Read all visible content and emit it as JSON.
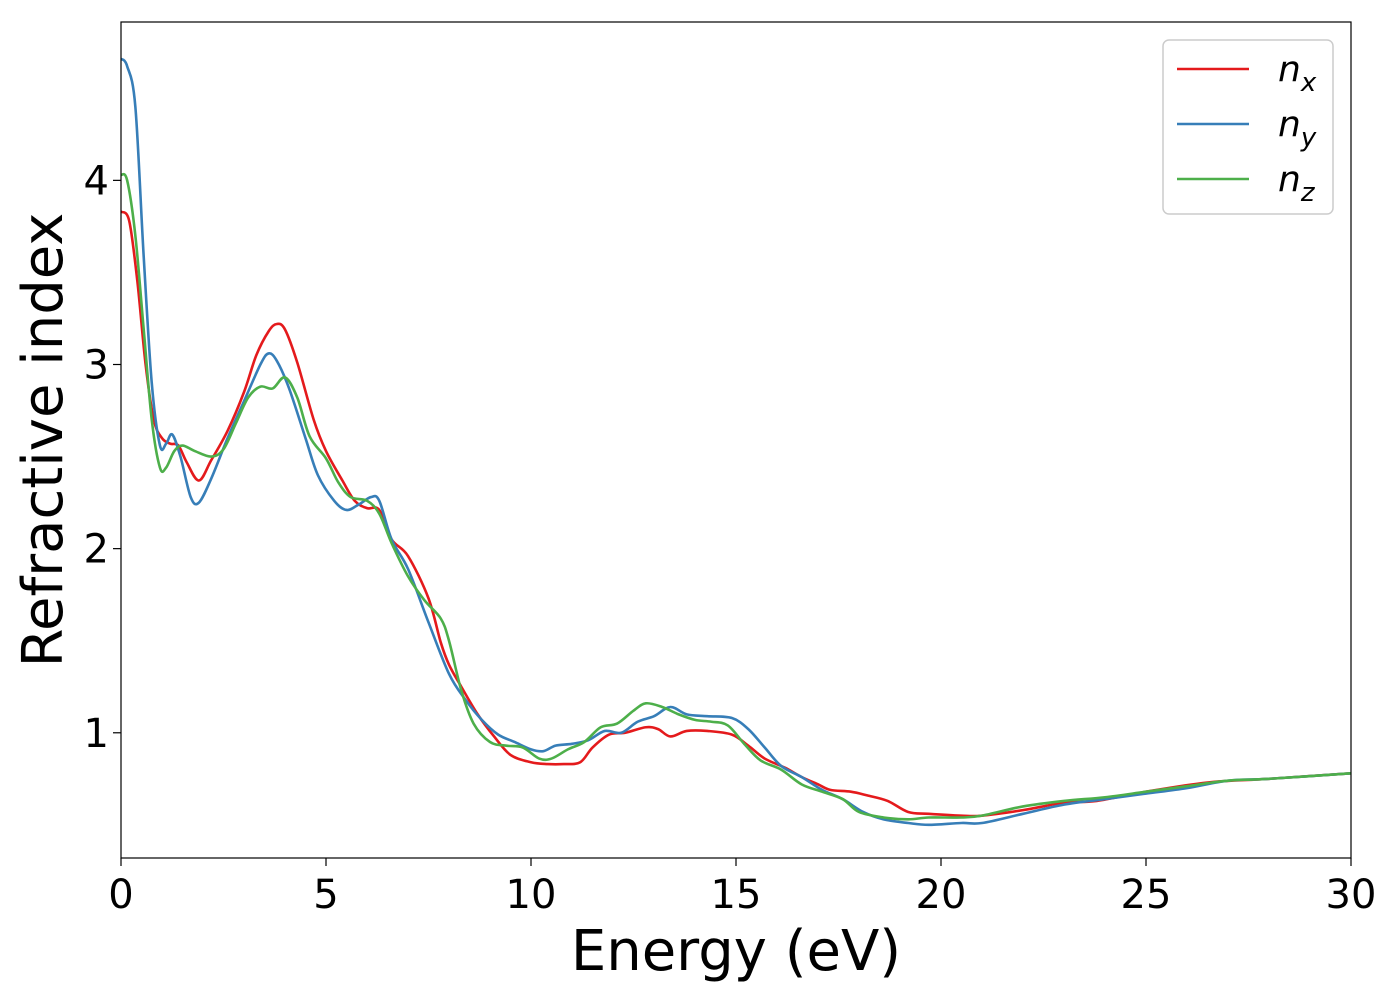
{
  "chart_data": {
    "type": "line",
    "xlabel": "Energy (eV)",
    "ylabel": "Refractive index",
    "xlim": [
      0,
      30
    ],
    "ylim": [
      0.32,
      4.86
    ],
    "xticks": [
      0,
      5,
      10,
      15,
      20,
      25,
      30
    ],
    "yticks": [
      1,
      2,
      3,
      4
    ],
    "grid": false,
    "legend_position": "top-right",
    "series": [
      {
        "name": "n",
        "subscript": "x",
        "color": "#e41a1c",
        "points": [
          [
            0,
            3.83
          ],
          [
            0.2,
            3.78
          ],
          [
            0.4,
            3.45
          ],
          [
            0.6,
            3.0
          ],
          [
            0.8,
            2.7
          ],
          [
            1.0,
            2.6
          ],
          [
            1.2,
            2.57
          ],
          [
            1.4,
            2.56
          ],
          [
            1.6,
            2.47
          ],
          [
            1.9,
            2.37
          ],
          [
            2.2,
            2.48
          ],
          [
            2.6,
            2.64
          ],
          [
            3.0,
            2.85
          ],
          [
            3.3,
            3.05
          ],
          [
            3.6,
            3.18
          ],
          [
            3.8,
            3.22
          ],
          [
            4.0,
            3.19
          ],
          [
            4.3,
            3.01
          ],
          [
            4.7,
            2.7
          ],
          [
            5.0,
            2.53
          ],
          [
            5.4,
            2.37
          ],
          [
            5.7,
            2.26
          ],
          [
            6.0,
            2.22
          ],
          [
            6.3,
            2.21
          ],
          [
            6.6,
            2.05
          ],
          [
            7.0,
            1.96
          ],
          [
            7.5,
            1.73
          ],
          [
            7.8,
            1.49
          ],
          [
            8.0,
            1.37
          ],
          [
            8.3,
            1.25
          ],
          [
            8.7,
            1.1
          ],
          [
            9.1,
            0.98
          ],
          [
            9.5,
            0.88
          ],
          [
            10.0,
            0.84
          ],
          [
            10.4,
            0.83
          ],
          [
            10.8,
            0.83
          ],
          [
            11.2,
            0.84
          ],
          [
            11.5,
            0.92
          ],
          [
            11.9,
            0.99
          ],
          [
            12.3,
            1.0
          ],
          [
            12.8,
            1.03
          ],
          [
            13.1,
            1.02
          ],
          [
            13.4,
            0.98
          ],
          [
            13.8,
            1.01
          ],
          [
            14.3,
            1.01
          ],
          [
            14.9,
            0.99
          ],
          [
            15.3,
            0.93
          ],
          [
            15.7,
            0.86
          ],
          [
            16.2,
            0.81
          ],
          [
            16.6,
            0.76
          ],
          [
            17.0,
            0.72
          ],
          [
            17.3,
            0.69
          ],
          [
            17.8,
            0.68
          ],
          [
            18.2,
            0.66
          ],
          [
            18.7,
            0.63
          ],
          [
            19.2,
            0.57
          ],
          [
            19.7,
            0.56
          ],
          [
            20.5,
            0.55
          ],
          [
            21.0,
            0.55
          ],
          [
            22.0,
            0.58
          ],
          [
            23.0,
            0.62
          ],
          [
            23.8,
            0.63
          ],
          [
            25.0,
            0.68
          ],
          [
            26.5,
            0.73
          ],
          [
            28.0,
            0.75
          ],
          [
            30.0,
            0.78
          ]
        ]
      },
      {
        "name": "n",
        "subscript": "y",
        "color": "#377eb8",
        "points": [
          [
            0,
            4.66
          ],
          [
            0.15,
            4.62
          ],
          [
            0.35,
            4.4
          ],
          [
            0.55,
            3.6
          ],
          [
            0.75,
            2.9
          ],
          [
            0.95,
            2.56
          ],
          [
            1.1,
            2.57
          ],
          [
            1.25,
            2.62
          ],
          [
            1.45,
            2.5
          ],
          [
            1.7,
            2.28
          ],
          [
            1.9,
            2.25
          ],
          [
            2.2,
            2.38
          ],
          [
            2.6,
            2.6
          ],
          [
            3.0,
            2.8
          ],
          [
            3.4,
            3.0
          ],
          [
            3.6,
            3.06
          ],
          [
            3.8,
            3.02
          ],
          [
            4.1,
            2.87
          ],
          [
            4.5,
            2.6
          ],
          [
            4.8,
            2.4
          ],
          [
            5.2,
            2.26
          ],
          [
            5.5,
            2.21
          ],
          [
            5.8,
            2.24
          ],
          [
            6.1,
            2.28
          ],
          [
            6.3,
            2.26
          ],
          [
            6.6,
            2.05
          ],
          [
            7.0,
            1.89
          ],
          [
            7.5,
            1.6
          ],
          [
            8.0,
            1.32
          ],
          [
            8.4,
            1.18
          ],
          [
            8.8,
            1.07
          ],
          [
            9.2,
            0.99
          ],
          [
            9.6,
            0.95
          ],
          [
            10.0,
            0.91
          ],
          [
            10.3,
            0.9
          ],
          [
            10.6,
            0.93
          ],
          [
            11.0,
            0.94
          ],
          [
            11.4,
            0.96
          ],
          [
            11.8,
            1.01
          ],
          [
            12.2,
            1.0
          ],
          [
            12.6,
            1.06
          ],
          [
            13.0,
            1.09
          ],
          [
            13.4,
            1.14
          ],
          [
            13.8,
            1.1
          ],
          [
            14.3,
            1.09
          ],
          [
            14.9,
            1.08
          ],
          [
            15.3,
            1.02
          ],
          [
            15.7,
            0.92
          ],
          [
            16.1,
            0.82
          ],
          [
            16.6,
            0.76
          ],
          [
            17.1,
            0.69
          ],
          [
            17.6,
            0.64
          ],
          [
            18.1,
            0.57
          ],
          [
            18.6,
            0.53
          ],
          [
            19.2,
            0.51
          ],
          [
            19.7,
            0.5
          ],
          [
            20.5,
            0.51
          ],
          [
            21.0,
            0.51
          ],
          [
            22.0,
            0.56
          ],
          [
            23.0,
            0.61
          ],
          [
            24.0,
            0.64
          ],
          [
            25.0,
            0.67
          ],
          [
            26.0,
            0.7
          ],
          [
            27.0,
            0.74
          ],
          [
            28.0,
            0.75
          ],
          [
            30.0,
            0.78
          ]
        ]
      },
      {
        "name": "n",
        "subscript": "z",
        "color": "#4daf4a",
        "points": [
          [
            0,
            4.03
          ],
          [
            0.15,
            4.0
          ],
          [
            0.35,
            3.7
          ],
          [
            0.55,
            3.2
          ],
          [
            0.75,
            2.7
          ],
          [
            0.95,
            2.44
          ],
          [
            1.1,
            2.44
          ],
          [
            1.3,
            2.53
          ],
          [
            1.5,
            2.56
          ],
          [
            1.8,
            2.53
          ],
          [
            2.2,
            2.5
          ],
          [
            2.5,
            2.54
          ],
          [
            2.8,
            2.68
          ],
          [
            3.1,
            2.82
          ],
          [
            3.4,
            2.88
          ],
          [
            3.7,
            2.87
          ],
          [
            4.0,
            2.93
          ],
          [
            4.3,
            2.82
          ],
          [
            4.6,
            2.61
          ],
          [
            5.0,
            2.49
          ],
          [
            5.3,
            2.36
          ],
          [
            5.6,
            2.28
          ],
          [
            6.0,
            2.26
          ],
          [
            6.3,
            2.19
          ],
          [
            6.6,
            2.03
          ],
          [
            7.0,
            1.85
          ],
          [
            7.4,
            1.72
          ],
          [
            7.8,
            1.62
          ],
          [
            8.0,
            1.5
          ],
          [
            8.3,
            1.23
          ],
          [
            8.6,
            1.05
          ],
          [
            9.0,
            0.95
          ],
          [
            9.4,
            0.93
          ],
          [
            9.8,
            0.92
          ],
          [
            10.2,
            0.86
          ],
          [
            10.5,
            0.86
          ],
          [
            10.9,
            0.91
          ],
          [
            11.3,
            0.95
          ],
          [
            11.7,
            1.03
          ],
          [
            12.1,
            1.05
          ],
          [
            12.5,
            1.12
          ],
          [
            12.8,
            1.16
          ],
          [
            13.2,
            1.14
          ],
          [
            13.6,
            1.1
          ],
          [
            14.0,
            1.07
          ],
          [
            14.4,
            1.06
          ],
          [
            14.8,
            1.04
          ],
          [
            15.2,
            0.94
          ],
          [
            15.6,
            0.85
          ],
          [
            16.1,
            0.8
          ],
          [
            16.6,
            0.72
          ],
          [
            17.1,
            0.68
          ],
          [
            17.6,
            0.64
          ],
          [
            18.0,
            0.57
          ],
          [
            18.6,
            0.54
          ],
          [
            19.2,
            0.53
          ],
          [
            19.7,
            0.54
          ],
          [
            20.5,
            0.54
          ],
          [
            21.0,
            0.55
          ],
          [
            22.0,
            0.6
          ],
          [
            23.0,
            0.63
          ],
          [
            24.0,
            0.65
          ],
          [
            25.0,
            0.68
          ],
          [
            26.0,
            0.71
          ],
          [
            27.0,
            0.74
          ],
          [
            28.0,
            0.75
          ],
          [
            30.0,
            0.78
          ]
        ]
      }
    ]
  }
}
